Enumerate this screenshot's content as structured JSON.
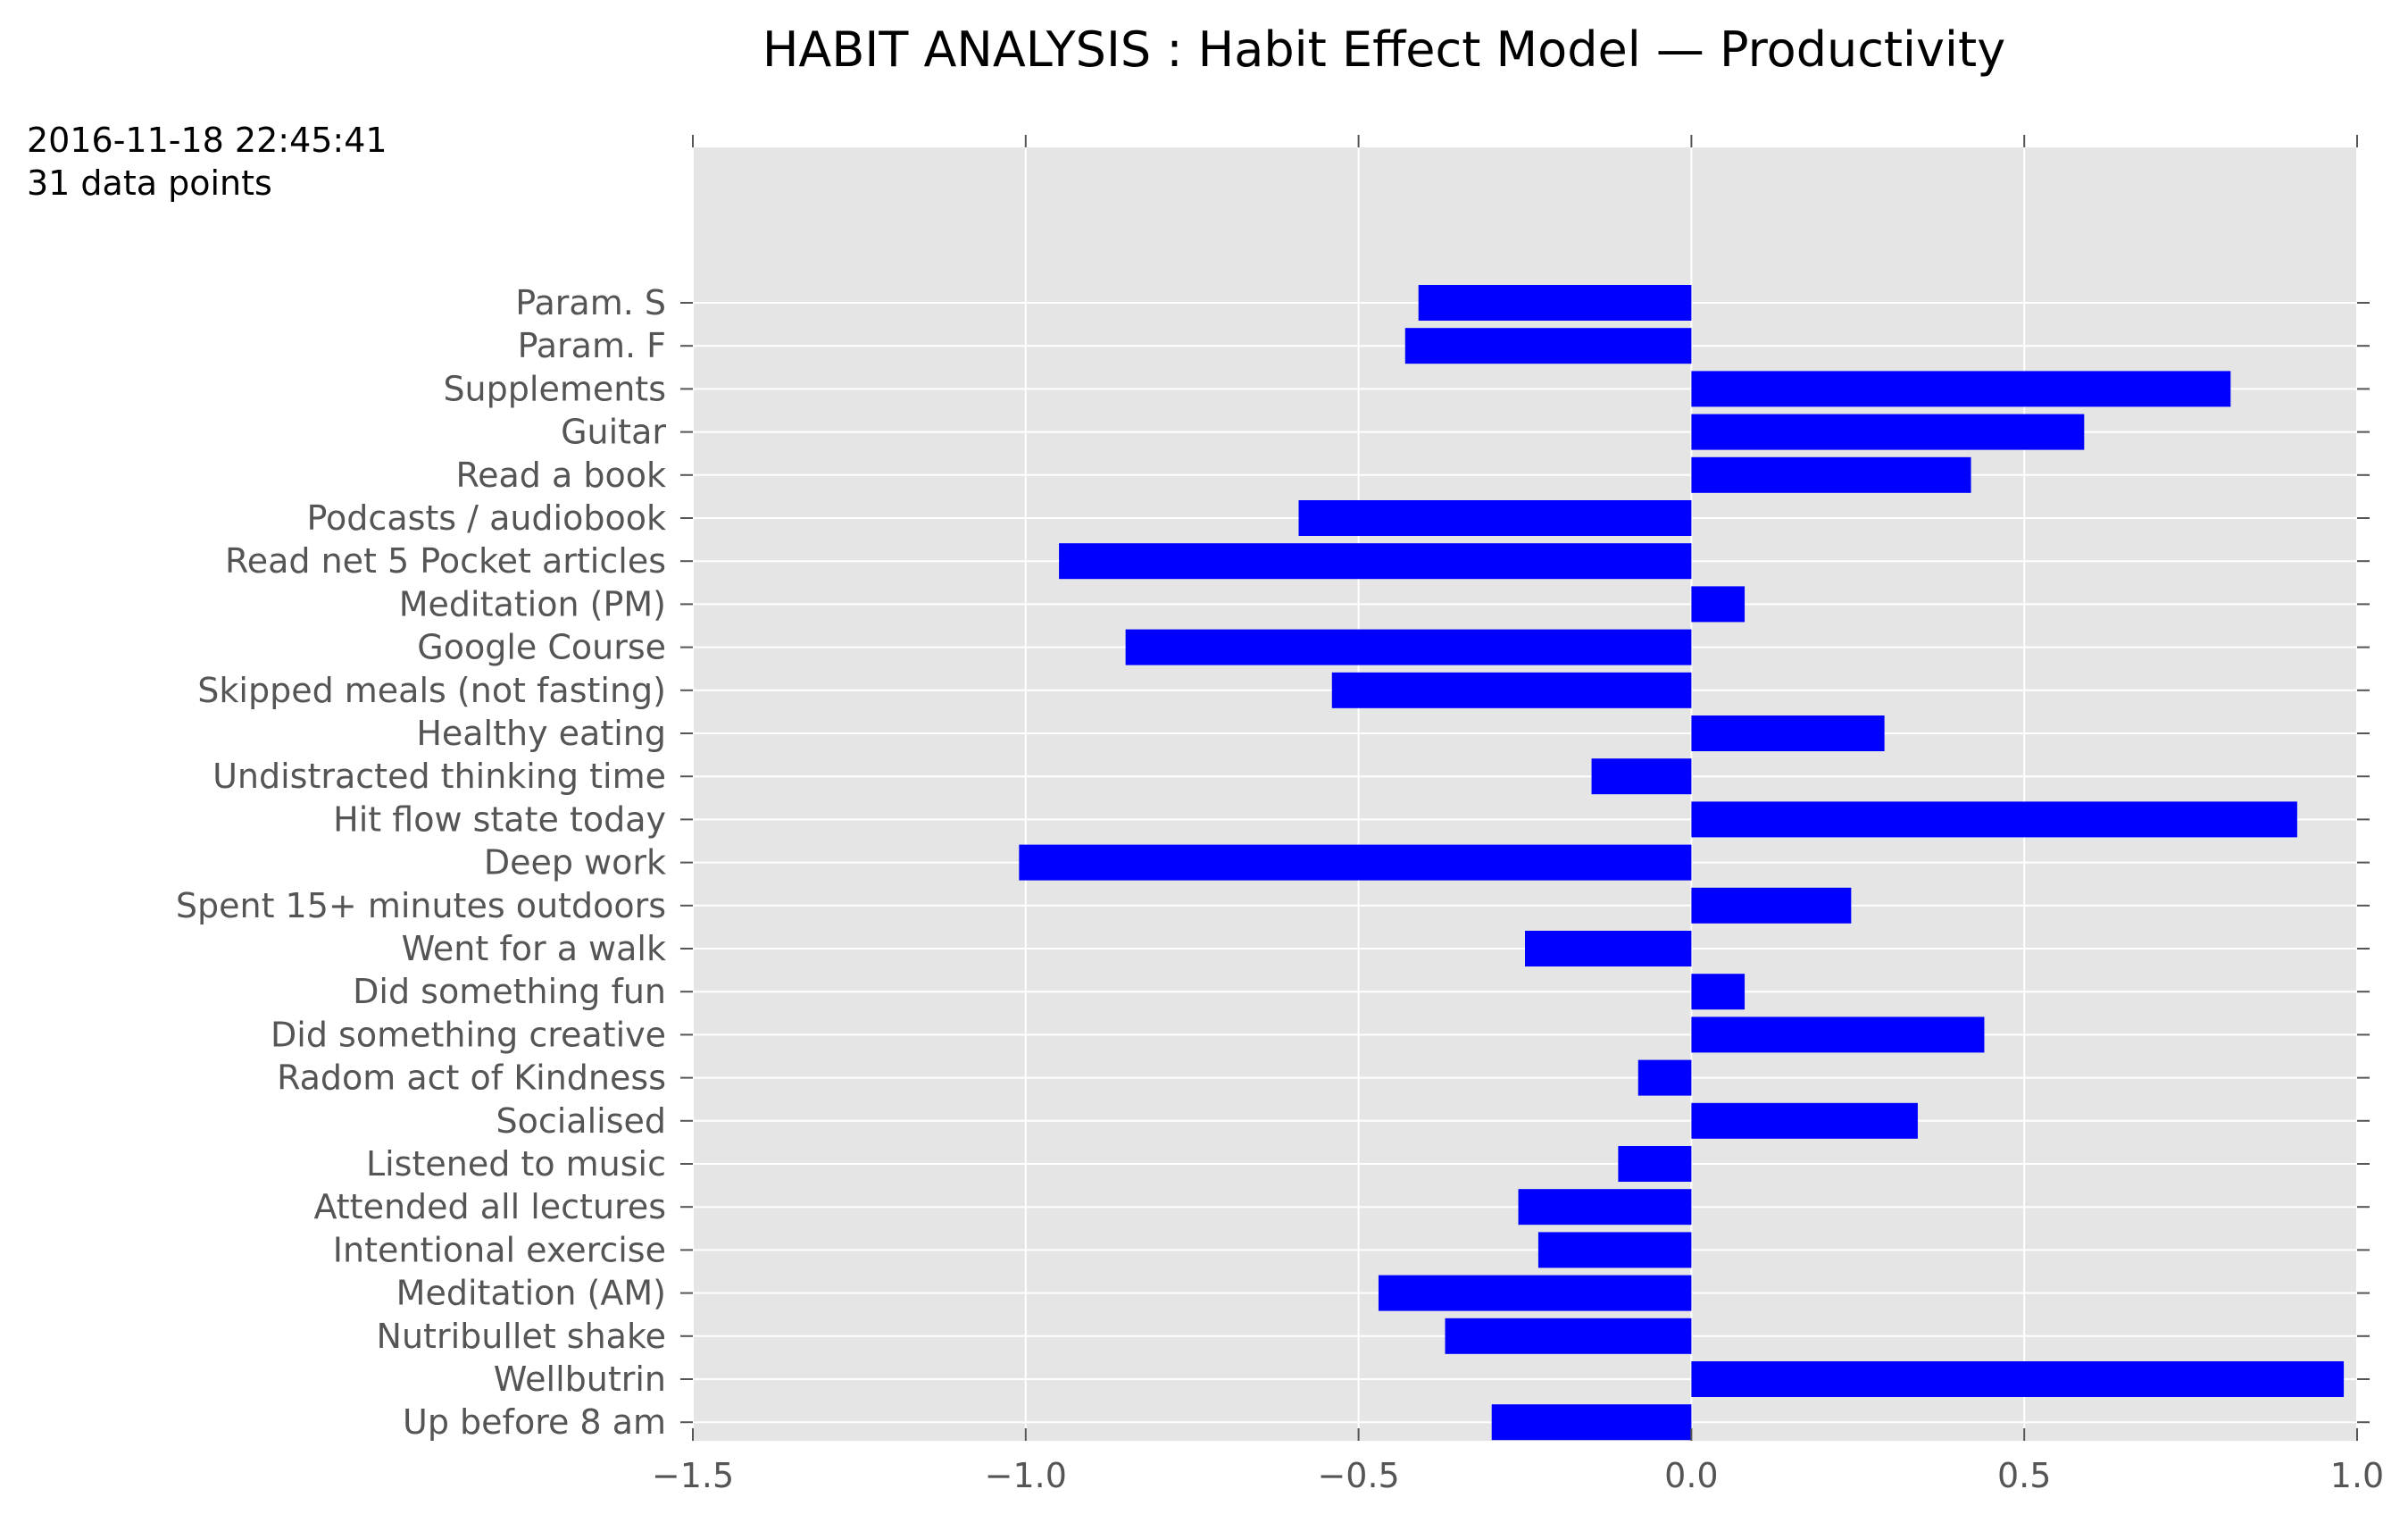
{
  "header": {
    "timestamp": "2016-11-18 22:45:41",
    "data_points": "31 data points"
  },
  "chart_data": {
    "type": "bar",
    "orientation": "horizontal",
    "title": "HABIT ANALYSIS : Habit Effect Model — Productivity",
    "xlabel": "",
    "ylabel": "",
    "xlim": [
      -1.5,
      1.0
    ],
    "xticks": [
      -1.5,
      -1.0,
      -0.5,
      0.0,
      0.5,
      1.0
    ],
    "xtick_labels": [
      "−1.5",
      "−1.0",
      "−0.5",
      "0.0",
      "0.5",
      "1.0"
    ],
    "grid": true,
    "background": "#e5e5e5",
    "bar_color": "#0000ff",
    "categories": [
      "Param. S",
      "Param. F",
      "Supplements",
      "Guitar",
      "Read a book",
      "Podcasts / audiobook",
      "Read net 5 Pocket articles",
      "Meditation (PM)",
      "Google Course",
      "Skipped meals (not fasting)",
      "Healthy eating",
      "Undistracted thinking time",
      "Hit flow state today",
      "Deep work",
      "Spent 15+ minutes outdoors",
      "Went for a walk",
      "Did something fun",
      "Did something creative",
      "Radom act of Kindness",
      "Socialised",
      "Listened to music",
      "Attended all lectures",
      "Intentional exercise",
      "Meditation (AM)",
      "Nutribullet shake",
      "Wellbutrin",
      "Up before 8 am"
    ],
    "values": [
      -0.41,
      -0.43,
      0.81,
      0.59,
      0.42,
      -0.59,
      -0.95,
      0.08,
      -0.85,
      -0.54,
      0.29,
      -0.15,
      0.91,
      -1.01,
      0.24,
      -0.25,
      0.08,
      0.44,
      -0.08,
      0.34,
      -0.11,
      -0.26,
      -0.23,
      -0.47,
      -0.37,
      0.98,
      -0.3
    ]
  }
}
